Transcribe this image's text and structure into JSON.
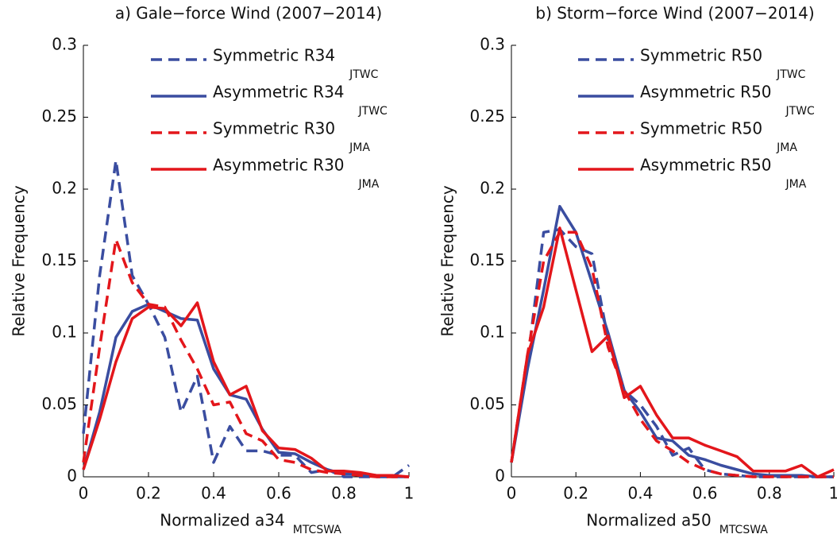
{
  "chart_data": [
    {
      "type": "line",
      "title": "a) Gale−force Wind (2007−2014)",
      "xlabel": "Normalized a34",
      "xlabel_subscript": "MTCSWA",
      "ylabel": "Relative Frequency",
      "x": [
        0,
        0.05,
        0.1,
        0.15,
        0.2,
        0.25,
        0.3,
        0.35,
        0.4,
        0.45,
        0.5,
        0.55,
        0.6,
        0.65,
        0.7,
        0.75,
        0.8,
        0.85,
        0.9,
        0.95,
        1
      ],
      "xlim": [
        0,
        1
      ],
      "ylim": [
        0,
        0.3
      ],
      "xticks": [
        0,
        0.2,
        0.4,
        0.6,
        0.8,
        1
      ],
      "yticks": [
        0,
        0.05,
        0.1,
        0.15,
        0.2,
        0.25,
        0.3
      ],
      "series": [
        {
          "name": "Symmetric R34",
          "subscript": "JTWC",
          "color": "#3a4da0",
          "linestyle": "dashed",
          "values": [
            0.03,
            0.14,
            0.22,
            0.14,
            0.12,
            0.097,
            0.045,
            0.07,
            0.01,
            0.035,
            0.018,
            0.018,
            0.015,
            0.015,
            0.003,
            0.005,
            0,
            0,
            0,
            0,
            0.008
          ]
        },
        {
          "name": "Asymmetric R34",
          "subscript": "JTWC",
          "color": "#3a4da0",
          "linestyle": "solid",
          "values": [
            0.005,
            0.045,
            0.097,
            0.115,
            0.12,
            0.115,
            0.11,
            0.109,
            0.075,
            0.057,
            0.054,
            0.033,
            0.017,
            0.016,
            0.01,
            0.005,
            0.002,
            0.002,
            0.001,
            0,
            0
          ]
        },
        {
          "name": "Symmetric R30",
          "subscript": "JMA",
          "color": "#e3161b",
          "linestyle": "dashed",
          "values": [
            0.01,
            0.09,
            0.165,
            0.135,
            0.12,
            0.118,
            0.095,
            0.075,
            0.05,
            0.052,
            0.03,
            0.025,
            0.012,
            0.01,
            0.005,
            0.003,
            0.002,
            0.001,
            0,
            0,
            0
          ]
        },
        {
          "name": "Asymmetric R30",
          "subscript": "JMA",
          "color": "#e3161b",
          "linestyle": "solid",
          "values": [
            0.005,
            0.04,
            0.08,
            0.11,
            0.118,
            0.117,
            0.105,
            0.121,
            0.08,
            0.057,
            0.063,
            0.032,
            0.02,
            0.019,
            0.013,
            0.004,
            0.004,
            0.003,
            0.001,
            0.001,
            0
          ]
        }
      ]
    },
    {
      "type": "line",
      "title": "b) Storm−force Wind (2007−2014)",
      "xlabel": "Normalized a50",
      "xlabel_subscript": "MTCSWA",
      "ylabel": "Relative Frequency",
      "x": [
        0,
        0.05,
        0.1,
        0.15,
        0.2,
        0.25,
        0.3,
        0.35,
        0.4,
        0.45,
        0.5,
        0.55,
        0.6,
        0.65,
        0.7,
        0.75,
        0.8,
        0.85,
        0.9,
        0.95,
        1
      ],
      "xlim": [
        0,
        1
      ],
      "ylim": [
        0,
        0.3
      ],
      "xticks": [
        0,
        0.2,
        0.4,
        0.6,
        0.8,
        1
      ],
      "yticks": [
        0,
        0.05,
        0.1,
        0.15,
        0.2,
        0.25,
        0.3
      ],
      "series": [
        {
          "name": "Symmetric R50",
          "subscript": "JTWC",
          "color": "#3a4da0",
          "linestyle": "dashed",
          "values": [
            0.01,
            0.08,
            0.17,
            0.172,
            0.16,
            0.155,
            0.095,
            0.06,
            0.05,
            0.035,
            0.015,
            0.02,
            0.005,
            0.002,
            0.001,
            0,
            0,
            0,
            0,
            0,
            0
          ]
        },
        {
          "name": "Asymmetric R50",
          "subscript": "JTWC",
          "color": "#3a4da0",
          "linestyle": "solid",
          "values": [
            0.01,
            0.075,
            0.13,
            0.188,
            0.17,
            0.135,
            0.1,
            0.06,
            0.045,
            0.027,
            0.025,
            0.015,
            0.012,
            0.008,
            0.005,
            0.002,
            0.001,
            0.001,
            0.001,
            0,
            0
          ]
        },
        {
          "name": "Symmetric R50",
          "subscript": "JMA",
          "color": "#e3161b",
          "linestyle": "dashed",
          "values": [
            0.01,
            0.085,
            0.15,
            0.17,
            0.17,
            0.145,
            0.09,
            0.06,
            0.04,
            0.025,
            0.018,
            0.01,
            0.005,
            0.002,
            0.001,
            0,
            0,
            0,
            0,
            0,
            0
          ]
        },
        {
          "name": "Asymmetric R50",
          "subscript": "JMA",
          "color": "#e3161b",
          "linestyle": "solid",
          "values": [
            0.01,
            0.085,
            0.118,
            0.173,
            0.13,
            0.087,
            0.098,
            0.055,
            0.063,
            0.043,
            0.027,
            0.027,
            0.022,
            0.018,
            0.014,
            0.004,
            0.004,
            0.004,
            0.008,
            0,
            0.005
          ]
        }
      ]
    }
  ]
}
